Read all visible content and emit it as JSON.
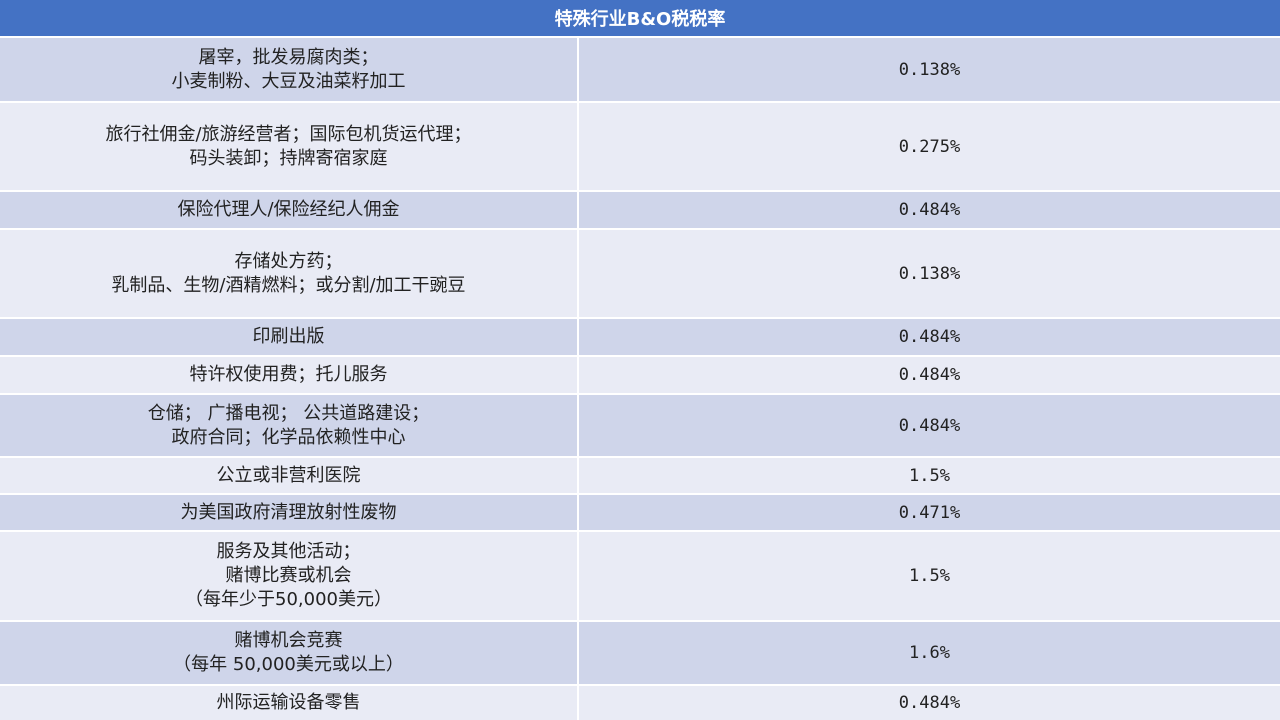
{
  "table": {
    "title": "特殊行业B&O税税率",
    "rows": [
      {
        "category": "屠宰，批发易腐肉类；\n小麦制粉、大豆及油菜籽加工",
        "rate": "0.138%"
      },
      {
        "category": "旅行社佣金/旅游经营者；国际包机货运代理；\n码头装卸；持牌寄宿家庭",
        "rate": "0.275%"
      },
      {
        "category": "保险代理人/保险经纪人佣金",
        "rate": "0.484%"
      },
      {
        "category": "存储处方药；\n乳制品、生物/酒精燃料；或分割/加工干豌豆",
        "rate": "0.138%"
      },
      {
        "category": "印刷出版",
        "rate": "0.484%"
      },
      {
        "category": "特许权使用费；托儿服务",
        "rate": "0.484%"
      },
      {
        "category": "仓储； 广播电视； 公共道路建设；\n政府合同；化学品依赖性中心",
        "rate": "0.484%"
      },
      {
        "category": "公立或非营利医院",
        "rate": "1.5%"
      },
      {
        "category": "为美国政府清理放射性废物",
        "rate": "0.471%"
      },
      {
        "category": "服务及其他活动；\n赌博比赛或机会\n（每年少于50,000美元）",
        "rate": "1.5%"
      },
      {
        "category": "赌博机会竞赛\n（每年 50,000美元或以上）",
        "rate": "1.6%"
      },
      {
        "category": "州际运输设备零售",
        "rate": "0.484%"
      }
    ]
  }
}
